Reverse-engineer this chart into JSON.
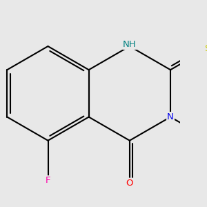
{
  "bg_color": "#e8e8e8",
  "bond_color": "#000000",
  "bond_lw": 1.5,
  "atom_colors": {
    "N": "#0000ee",
    "NH": "#008080",
    "S": "#cccc00",
    "O": "#ff0000",
    "F": "#ff00aa",
    "C": "#000000"
  },
  "font_size_atom": 9.5
}
